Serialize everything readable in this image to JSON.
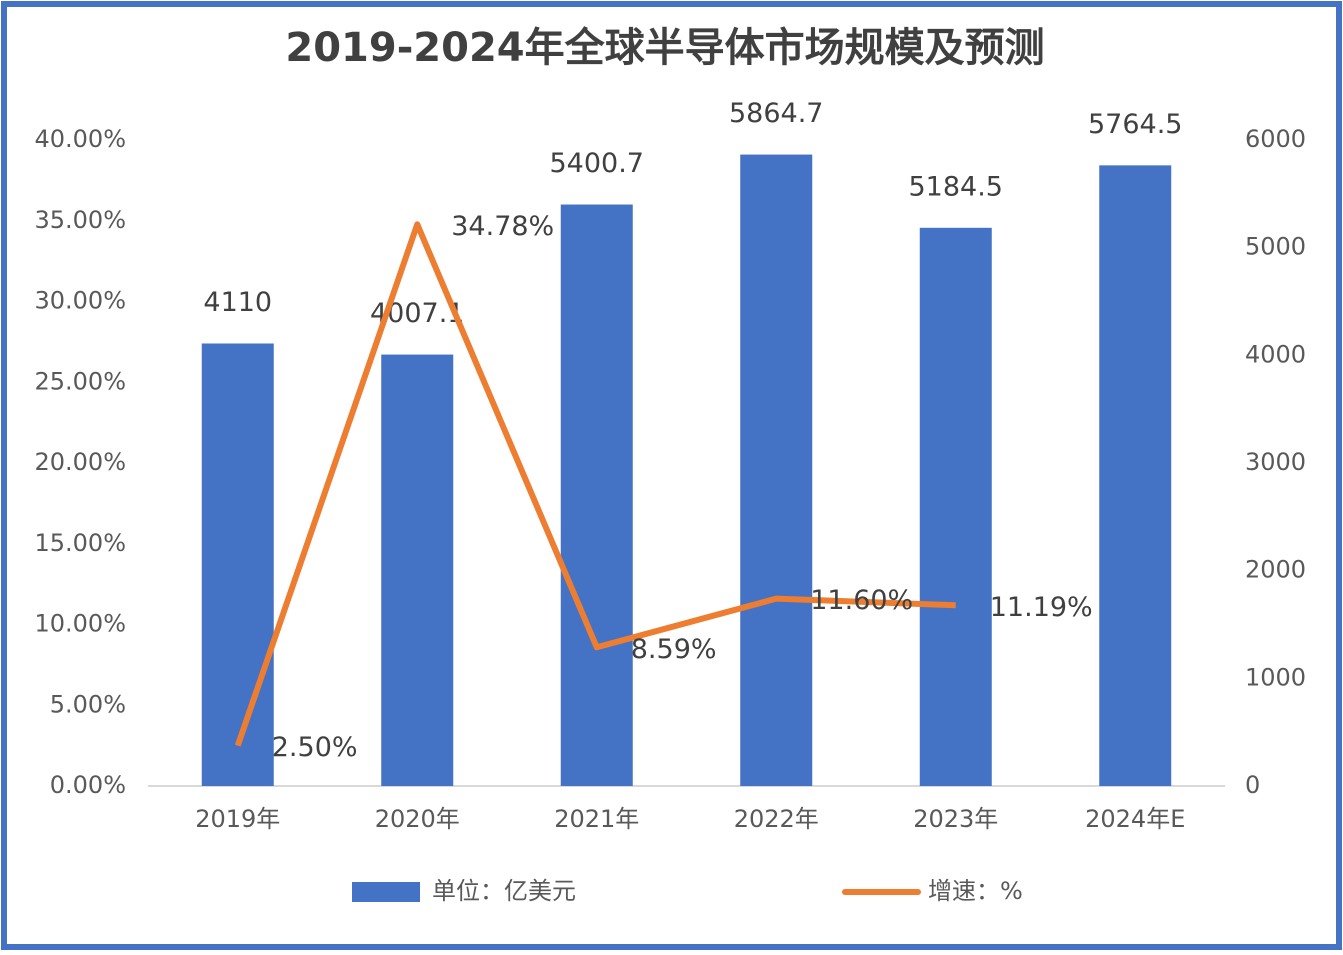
{
  "chart_data": {
    "type": "bar_line",
    "title": "2019-2024年全球半导体市场规模及预测",
    "categories": [
      "2019年",
      "2020年",
      "2021年",
      "2022年",
      "2023年",
      "2024年E"
    ],
    "series": [
      {
        "name": "单位：亿美元",
        "type": "bar",
        "color": "#4472c4",
        "axis": "y2",
        "values": [
          4110,
          4007.1,
          5400.7,
          5864.7,
          5184.5,
          5764.5
        ]
      },
      {
        "name": "增速：%",
        "type": "line",
        "color": "#ed7d31",
        "values": [
          2.5,
          34.78,
          8.59,
          11.6,
          11.19,
          null
        ],
        "value_labels": [
          "2.50%",
          "34.78%",
          "8.59%",
          "11.60%",
          "11.19%",
          null
        ]
      }
    ],
    "ylim": [
      0,
      40
    ],
    "yticks": [
      {
        "value": 0,
        "label": "0.00%"
      },
      {
        "value": 5,
        "label": "5.00%"
      },
      {
        "value": 10,
        "label": "10.00%"
      },
      {
        "value": 15,
        "label": "15.00%"
      },
      {
        "value": 20,
        "label": "20.00%"
      },
      {
        "value": 25,
        "label": "25.00%"
      },
      {
        "value": 30,
        "label": "30.00%"
      },
      {
        "value": 35,
        "label": "35.00%"
      },
      {
        "value": 40,
        "label": "40.00%"
      }
    ],
    "y2lim": [
      0,
      6000
    ],
    "y2ticks": [
      0,
      1000,
      2000,
      3000,
      4000,
      5000,
      6000
    ],
    "grid": false,
    "legend": "bottom"
  }
}
